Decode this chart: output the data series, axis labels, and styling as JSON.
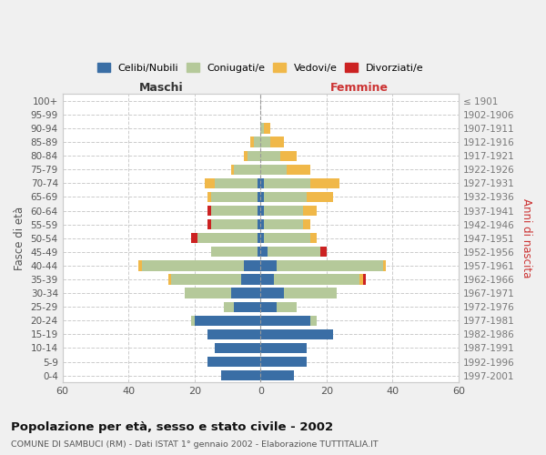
{
  "age_groups": [
    "0-4",
    "5-9",
    "10-14",
    "15-19",
    "20-24",
    "25-29",
    "30-34",
    "35-39",
    "40-44",
    "45-49",
    "50-54",
    "55-59",
    "60-64",
    "65-69",
    "70-74",
    "75-79",
    "80-84",
    "85-89",
    "90-94",
    "95-99",
    "100+"
  ],
  "birth_years": [
    "1997-2001",
    "1992-1996",
    "1987-1991",
    "1982-1986",
    "1977-1981",
    "1972-1976",
    "1967-1971",
    "1962-1966",
    "1957-1961",
    "1952-1956",
    "1947-1951",
    "1942-1946",
    "1937-1941",
    "1932-1936",
    "1927-1931",
    "1922-1926",
    "1917-1921",
    "1912-1916",
    "1907-1911",
    "1902-1906",
    "≤ 1901"
  ],
  "maschi": {
    "celibi": [
      12,
      16,
      14,
      16,
      20,
      8,
      9,
      6,
      5,
      1,
      1,
      1,
      1,
      1,
      1,
      0,
      0,
      0,
      0,
      0,
      0
    ],
    "coniugati": [
      0,
      0,
      0,
      0,
      1,
      3,
      14,
      21,
      31,
      14,
      18,
      14,
      14,
      14,
      13,
      8,
      4,
      2,
      0,
      0,
      0
    ],
    "vedovi": [
      0,
      0,
      0,
      0,
      0,
      0,
      0,
      1,
      1,
      0,
      0,
      0,
      0,
      1,
      3,
      1,
      1,
      1,
      0,
      0,
      0
    ],
    "divorziati": [
      0,
      0,
      0,
      0,
      0,
      0,
      0,
      0,
      0,
      0,
      2,
      1,
      1,
      0,
      0,
      0,
      0,
      0,
      0,
      0,
      0
    ]
  },
  "femmine": {
    "nubili": [
      10,
      14,
      14,
      22,
      15,
      5,
      7,
      4,
      5,
      2,
      1,
      1,
      1,
      1,
      1,
      0,
      0,
      0,
      0,
      0,
      0
    ],
    "coniugate": [
      0,
      0,
      0,
      0,
      2,
      6,
      16,
      26,
      32,
      16,
      14,
      12,
      12,
      13,
      14,
      8,
      6,
      3,
      1,
      0,
      0
    ],
    "vedove": [
      0,
      0,
      0,
      0,
      0,
      0,
      0,
      1,
      1,
      0,
      2,
      2,
      4,
      8,
      9,
      7,
      5,
      4,
      2,
      0,
      0
    ],
    "divorziate": [
      0,
      0,
      0,
      0,
      0,
      0,
      0,
      1,
      0,
      2,
      0,
      0,
      0,
      0,
      0,
      0,
      0,
      0,
      0,
      0,
      0
    ]
  },
  "colors": {
    "celibi": "#3a6ea5",
    "coniugati": "#b5c99a",
    "vedovi": "#f0b849",
    "divorziati": "#cc2222"
  },
  "xlim": 60,
  "title": "Popolazione per età, sesso e stato civile - 2002",
  "subtitle": "COMUNE DI SAMBUCI (RM) - Dati ISTAT 1° gennaio 2002 - Elaborazione TUTTITALIA.IT",
  "ylabel_left": "Fasce di età",
  "ylabel_right": "Anni di nascita",
  "xlabel_left": "Maschi",
  "xlabel_right": "Femmine",
  "legend_labels": [
    "Celibi/Nubili",
    "Coniugati/e",
    "Vedovi/e",
    "Divorziati/e"
  ],
  "bg_color": "#f0f0f0",
  "plot_bg_color": "#ffffff"
}
